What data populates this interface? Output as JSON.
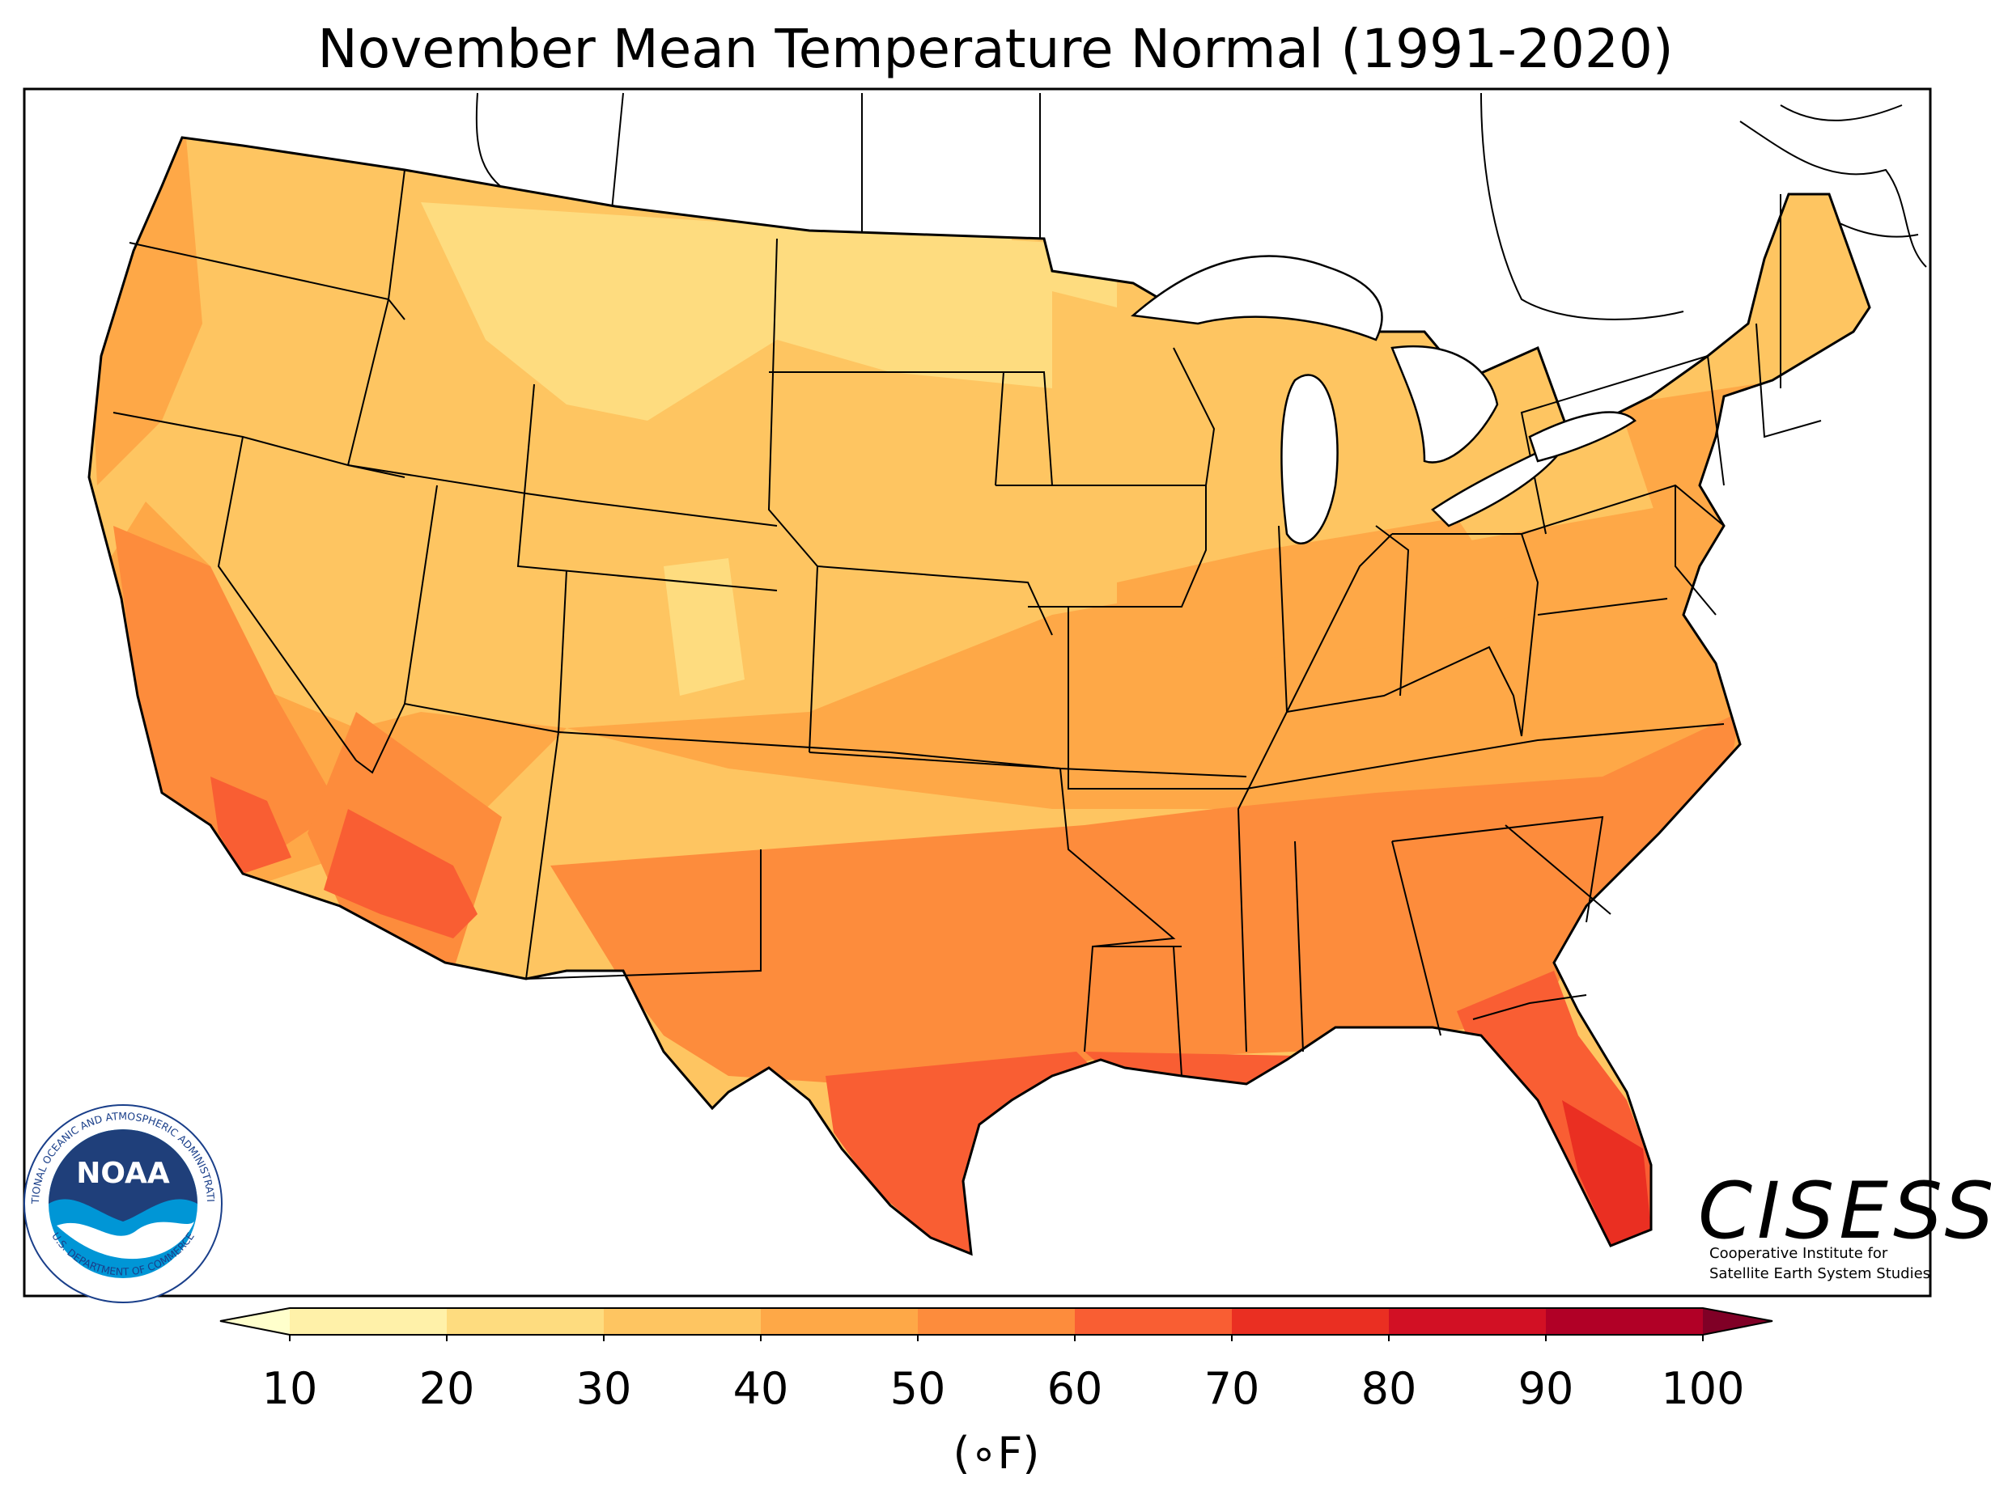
{
  "title": "November Mean Temperature Normal (1991-2020)",
  "colorbar": {
    "ticks": [
      "10",
      "20",
      "30",
      "40",
      "50",
      "60",
      "70",
      "80",
      "90",
      "100"
    ],
    "unit_label": "(∘F)",
    "bins": [
      {
        "from": 10,
        "to": 20,
        "color": "#fff1a9"
      },
      {
        "from": 20,
        "to": 30,
        "color": "#fedc7f"
      },
      {
        "from": 30,
        "to": 40,
        "color": "#fec561"
      },
      {
        "from": 40,
        "to": 50,
        "color": "#fea847"
      },
      {
        "from": 50,
        "to": 60,
        "color": "#fd8c3c"
      },
      {
        "from": 60,
        "to": 70,
        "color": "#f95e33"
      },
      {
        "from": 70,
        "to": 80,
        "color": "#ea2f22"
      },
      {
        "from": 80,
        "to": 90,
        "color": "#d21024"
      },
      {
        "from": 90,
        "to": 100,
        "color": "#b10026"
      }
    ],
    "under_color": "#ffffcc",
    "over_color": "#800026"
  },
  "logos": {
    "noaa": {
      "word": "NOAA",
      "ring_top": "NATIONAL OCEANIC AND ATMOSPHERIC ADMINISTRATION",
      "ring_bottom": "U.S. DEPARTMENT OF COMMERCE"
    },
    "cisess": {
      "word": "CISESS",
      "line1": "Cooperative Institute for",
      "line2": "Satellite Earth System Studies"
    }
  }
}
